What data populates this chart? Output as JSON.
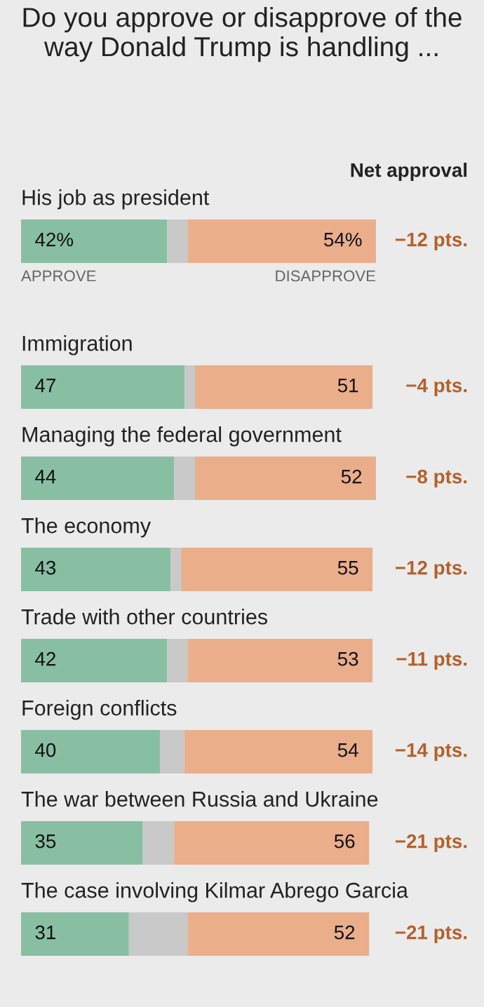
{
  "chart_data": {
    "type": "bar",
    "orientation": "horizontal",
    "stacked": true,
    "title": "Do you approve or disapprove of the way Donald Trump is handling ...",
    "categories": [
      "His job as president",
      "Immigration",
      "Managing the federal government",
      "The economy",
      "Trade with other countries",
      "Foreign conflicts",
      "The war between Russia and Ukraine",
      "The case involving Kilmar Abrego Garcia"
    ],
    "series": [
      {
        "color": "#88bfa3",
        "values": [
          42,
          47,
          44,
          43,
          42,
          40,
          35,
          31
        ],
        "value_labels": [
          "42%",
          "47",
          "44",
          "43",
          "42",
          "40",
          "35",
          "31"
        ]
      },
      {
        "color": "#c9c9c9",
        "values": [
          6,
          3,
          6,
          3,
          6,
          7,
          9,
          17
        ]
      },
      {
        "color": "#eaae8a",
        "values": [
          54,
          51,
          52,
          55,
          53,
          54,
          56,
          52
        ],
        "value_labels": [
          "54%",
          "51",
          "52",
          "55",
          "53",
          "54",
          "56",
          "52"
        ]
      }
    ],
    "xlim": [
      0,
      102
    ],
    "annotations": [
      "Net approval",
      "APPROVE",
      "DISAPPROVE",
      "−12 pts.",
      "−4 pts.",
      "−8 pts.",
      "−12 pts.",
      "−11 pts.",
      "−14 pts.",
      "−21 pts.",
      "−21 pts."
    ]
  }
}
